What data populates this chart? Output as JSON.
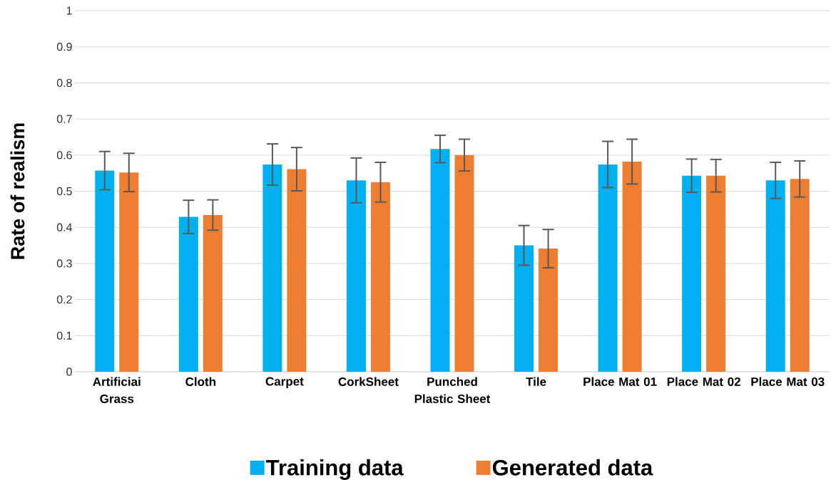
{
  "chart_data": {
    "type": "bar",
    "ylabel": "Rate of realism",
    "categories": [
      "Artificiai Grass",
      "Cloth",
      "Carpet",
      "CorkSheet",
      "Punched Plastic Sheet",
      "Tile",
      "Place Mat 01",
      "Place Mat 02",
      "Place Mat 03"
    ],
    "series": [
      {
        "name": "Training data",
        "color": "#00b0f0",
        "values": [
          0.557,
          0.429,
          0.574,
          0.53,
          0.617,
          0.35,
          0.574,
          0.543,
          0.53
        ],
        "errors": [
          0.053,
          0.046,
          0.057,
          0.062,
          0.038,
          0.055,
          0.064,
          0.046,
          0.05
        ]
      },
      {
        "name": "Generated data",
        "color": "#ed7d31",
        "values": [
          0.552,
          0.434,
          0.561,
          0.525,
          0.6,
          0.341,
          0.582,
          0.543,
          0.534
        ],
        "errors": [
          0.053,
          0.042,
          0.06,
          0.055,
          0.044,
          0.053,
          0.062,
          0.045,
          0.05
        ]
      }
    ],
    "ylim": [
      0,
      1
    ],
    "yticks": [
      0,
      0.1,
      0.2,
      0.3,
      0.4,
      0.5,
      0.6,
      0.7,
      0.8,
      0.9,
      1
    ],
    "grid": "y",
    "legend": "bottom"
  }
}
